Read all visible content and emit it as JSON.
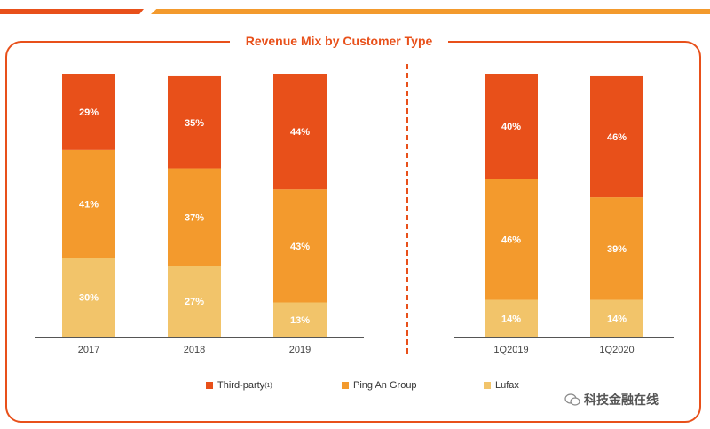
{
  "title": "Revenue Mix by Customer Type",
  "colors": {
    "third_party": "#e8501a",
    "ping_an": "#f39a2d",
    "lufax": "#f2c46a"
  },
  "legend": {
    "third_party": "Third-party",
    "third_party_note": "(1)",
    "ping_an": "Ping An Group",
    "lufax": "Lufax"
  },
  "watermark": "科技金融在线",
  "chart_data": [
    {
      "type": "bar",
      "stacked": true,
      "categories": [
        "2017",
        "2018",
        "2019"
      ],
      "series": [
        {
          "name": "Lufax",
          "values": [
            30,
            27,
            13
          ]
        },
        {
          "name": "Ping An Group",
          "values": [
            41,
            37,
            43
          ]
        },
        {
          "name": "Third-party",
          "values": [
            29,
            35,
            44
          ]
        }
      ],
      "labels": {
        "Lufax": [
          "30%",
          "27%",
          "13%"
        ],
        "Ping An Group": [
          "41%",
          "37%",
          "43%"
        ],
        "Third-party": [
          "29%",
          "35%",
          "44%"
        ]
      },
      "ylim": [
        0,
        100
      ]
    },
    {
      "type": "bar",
      "stacked": true,
      "categories": [
        "1Q2019",
        "1Q2020"
      ],
      "series": [
        {
          "name": "Lufax",
          "values": [
            14,
            14
          ]
        },
        {
          "name": "Ping An Group",
          "values": [
            46,
            39
          ]
        },
        {
          "name": "Third-party",
          "values": [
            40,
            46
          ]
        }
      ],
      "labels": {
        "Lufax": [
          "14%",
          "14%"
        ],
        "Ping An Group": [
          "46%",
          "39%"
        ],
        "Third-party": [
          "40%",
          "46%"
        ]
      },
      "ylim": [
        0,
        100
      ]
    }
  ]
}
